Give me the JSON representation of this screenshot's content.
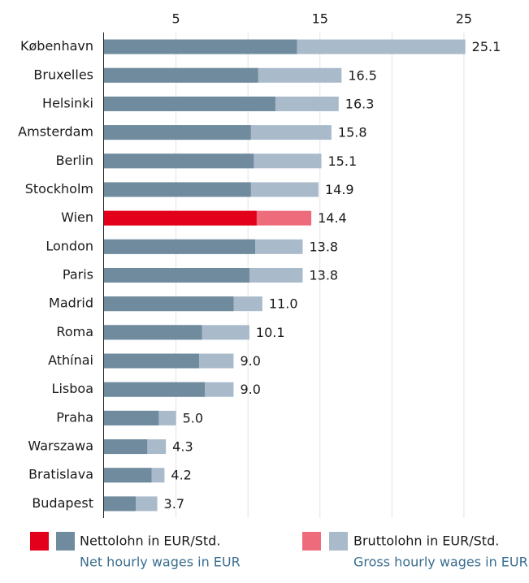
{
  "chart_data": {
    "type": "bar",
    "orientation": "horizontal",
    "categories": [
      "København",
      "Bruxelles",
      "Helsinki",
      "Amsterdam",
      "Berlin",
      "Stockholm",
      "Wien",
      "London",
      "Paris",
      "Madrid",
      "Roma",
      "Athínai",
      "Lisboa",
      "Praha",
      "Warszawa",
      "Bratislava",
      "Budapest"
    ],
    "series": [
      {
        "name": "Bruttolohn in EUR/Std.",
        "name_en": "Gross hourly wages in EUR",
        "color": "#a9bacb",
        "highlight_color": "#ee6b7c",
        "values": [
          25.1,
          16.5,
          16.3,
          15.8,
          15.1,
          14.9,
          14.4,
          13.8,
          13.8,
          11.0,
          10.1,
          9.0,
          9.0,
          5.0,
          4.3,
          4.2,
          3.7
        ],
        "value_labels": [
          "25.1",
          "16.5",
          "16.3",
          "15.8",
          "15.1",
          "14.9",
          "14.4",
          "13.8",
          "13.8",
          "11.0",
          "10.1",
          "9.0",
          "9.0",
          "5.0",
          "4.3",
          "4.2",
          "3.7"
        ]
      },
      {
        "name": "Nettolohn in EUR/Std.",
        "name_en": "Net hourly wages in EUR",
        "color": "#6f8b9d",
        "highlight_color": "#e2001a",
        "values": [
          13.4,
          10.7,
          11.9,
          10.2,
          10.4,
          10.2,
          10.6,
          10.5,
          10.1,
          9.0,
          6.8,
          6.6,
          7.0,
          3.8,
          3.0,
          3.3,
          2.2
        ]
      }
    ],
    "highlight_index": 6,
    "xlim": [
      0,
      28.9
    ],
    "xticks": [
      5,
      15,
      25
    ],
    "xminorticks": [
      10,
      20
    ],
    "grid": true,
    "legend_order": [
      1,
      0
    ],
    "legend_subtitle_color": "#3a6e8f"
  }
}
